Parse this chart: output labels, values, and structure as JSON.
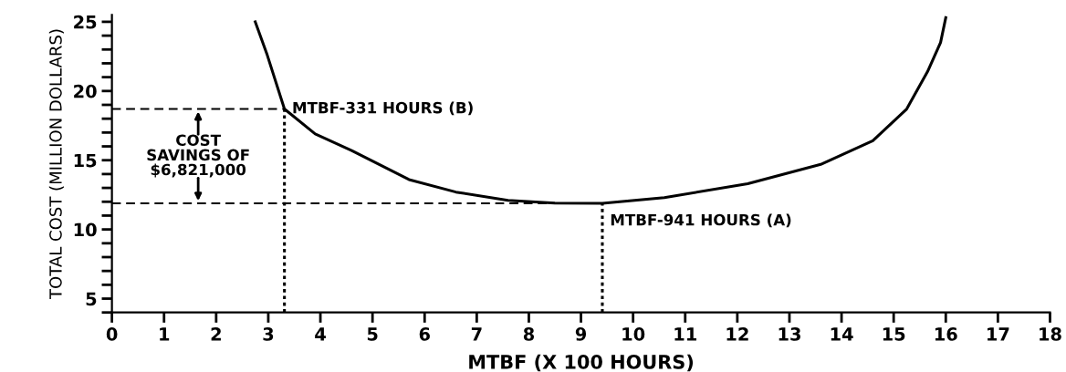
{
  "chart_data": {
    "type": "line",
    "xlabel": "MTBF (X 100 HOURS)",
    "ylabel": "TOTAL COST (MILLION DOLLARS)",
    "xlim": [
      0,
      18
    ],
    "ylim": [
      4,
      25.5
    ],
    "xticks": [
      0,
      1,
      2,
      3,
      4,
      5,
      6,
      7,
      8,
      9,
      10,
      11,
      12,
      13,
      14,
      15,
      16,
      17,
      18
    ],
    "yticks": [
      {
        "value": 4,
        "label": null
      },
      5,
      {
        "value": 6,
        "label": null
      },
      {
        "value": 7,
        "label": null
      },
      {
        "value": 8,
        "label": null
      },
      {
        "value": 9,
        "label": null
      },
      10,
      {
        "value": 11,
        "label": null
      },
      {
        "value": 12,
        "label": null
      },
      {
        "value": 13,
        "label": null
      },
      {
        "value": 14,
        "label": null
      },
      15,
      {
        "value": 16,
        "label": null
      },
      {
        "value": 17,
        "label": null
      },
      {
        "value": 18,
        "label": null
      },
      {
        "value": 19,
        "label": null
      },
      20,
      {
        "value": 21,
        "label": null
      },
      {
        "value": 22,
        "label": null
      },
      {
        "value": 23,
        "label": null
      },
      {
        "value": 24,
        "label": null
      },
      25
    ],
    "series": [
      {
        "color": "#000000",
        "line_style": "solid",
        "x": [
          2.75,
          2.98,
          3.31,
          3.9,
          4.6,
          5.7,
          6.6,
          7.6,
          8.5,
          9.41,
          10.6,
          12.2,
          13.6,
          14.6,
          15.25,
          15.65,
          15.9,
          16.0
        ],
        "values": [
          25,
          22.6,
          18.7,
          16.9,
          15.7,
          13.6,
          12.7,
          12.1,
          11.9,
          11.88,
          12.3,
          13.3,
          14.7,
          16.4,
          18.7,
          21.4,
          23.5,
          25.3
        ]
      },
      {
        "color": "#000000",
        "line_style": "dashed",
        "x": [
          0,
          3.31
        ],
        "values": [
          18.7,
          18.7
        ]
      },
      {
        "color": "#000000",
        "line_style": "dashed",
        "x": [
          0,
          9.41
        ],
        "values": [
          11.88,
          11.88
        ]
      },
      {
        "color": "#000000",
        "line_style": "dotted",
        "x": [
          3.31,
          3.31
        ],
        "values": [
          4,
          18.7
        ]
      },
      {
        "color": "#000000",
        "line_style": "dotted",
        "x": [
          9.41,
          9.41
        ],
        "values": [
          4,
          11.88
        ]
      }
    ],
    "annotations": [
      {
        "text": "MTBF-331 HOURS (B)",
        "x": 3.31,
        "y": 18.7
      },
      {
        "text": "MTBF-941 HOURS (A)",
        "x": 9.41,
        "y": 11.88
      },
      "COST\nSAVINGS OF\n$6,821,000"
    ]
  }
}
